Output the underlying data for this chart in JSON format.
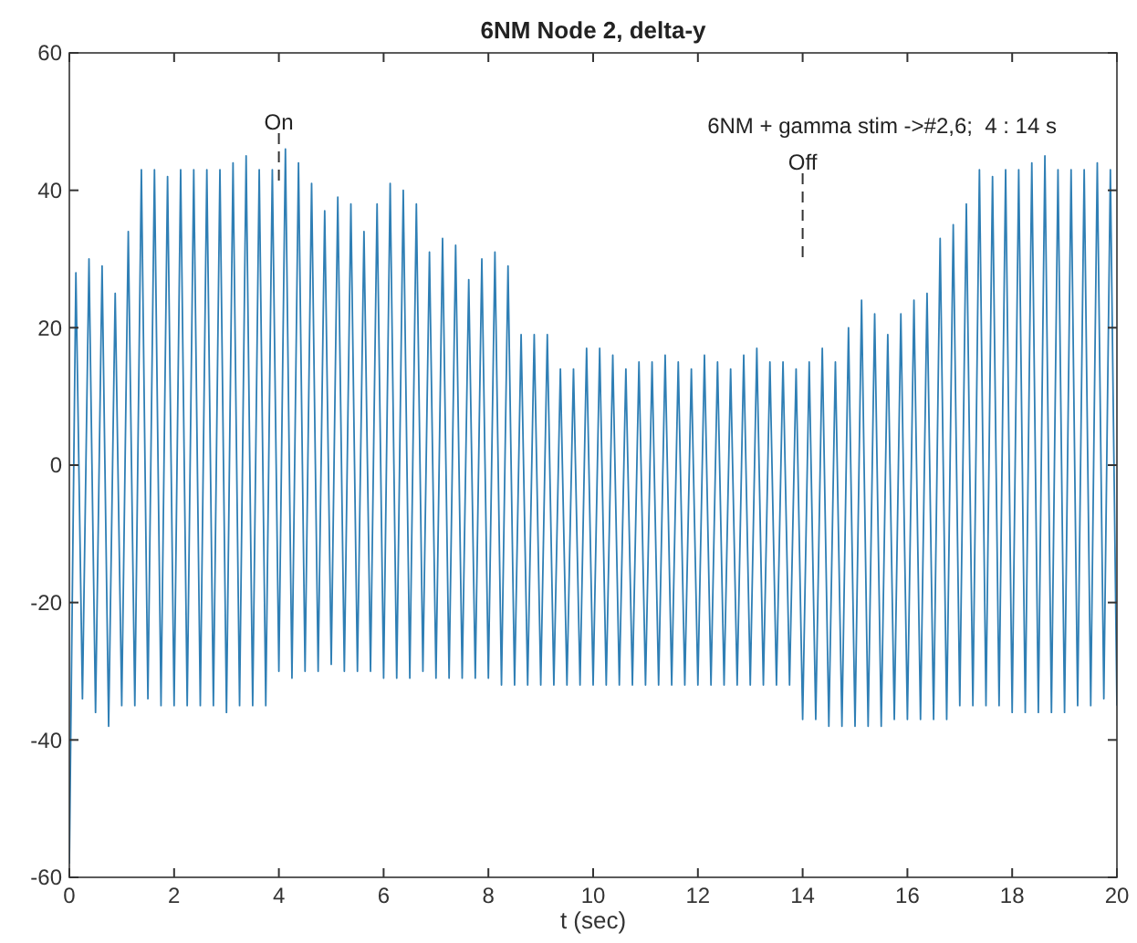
{
  "chart_data": {
    "type": "line",
    "title": "6NM Node 2, delta-y",
    "xlabel": "t (sec)",
    "annotations": [
      "6NM + gamma stim ->#2,6;  4 : 14 s"
    ],
    "ref_lines": [
      {
        "axis": "x",
        "value": 4,
        "label": "On",
        "line_style": "dashed",
        "color": "#333333"
      },
      {
        "axis": "x",
        "value": 14,
        "label": "Off",
        "line_style": "dashed",
        "color": "#333333"
      }
    ],
    "xlim": [
      0,
      20
    ],
    "xticks": [
      0,
      2,
      4,
      6,
      8,
      10,
      12,
      14,
      16,
      18,
      20
    ],
    "ylim": [
      -60,
      60
    ],
    "yticks": [
      -60,
      -40,
      -20,
      0,
      20,
      40,
      60
    ],
    "grid": false,
    "marker": "none",
    "line_style": "solid",
    "series": [
      {
        "color": "#2f7fb5",
        "x": [
          0,
          0.125,
          0.25,
          0.375,
          0.5,
          0.625,
          0.75,
          0.875,
          1,
          1.125,
          1.25,
          1.375,
          1.5,
          1.625,
          1.75,
          1.875,
          2,
          2.125,
          2.25,
          2.375,
          2.5,
          2.625,
          2.75,
          2.875,
          3,
          3.125,
          3.25,
          3.375,
          3.5,
          3.625,
          3.75,
          3.875,
          4,
          4.125,
          4.25,
          4.375,
          4.5,
          4.625,
          4.75,
          4.875,
          5,
          5.125,
          5.25,
          5.375,
          5.5,
          5.625,
          5.75,
          5.875,
          6,
          6.125,
          6.25,
          6.375,
          6.5,
          6.625,
          6.75,
          6.875,
          7,
          7.125,
          7.25,
          7.375,
          7.5,
          7.625,
          7.75,
          7.875,
          8,
          8.125,
          8.25,
          8.375,
          8.5,
          8.625,
          8.75,
          8.875,
          9,
          9.125,
          9.25,
          9.375,
          9.5,
          9.625,
          9.75,
          9.875,
          10,
          10.125,
          10.25,
          10.375,
          10.5,
          10.625,
          10.75,
          10.875,
          11,
          11.125,
          11.25,
          11.375,
          11.5,
          11.625,
          11.75,
          11.875,
          12,
          12.125,
          12.25,
          12.375,
          12.5,
          12.625,
          12.75,
          12.875,
          13,
          13.125,
          13.25,
          13.375,
          13.5,
          13.625,
          13.75,
          13.875,
          14,
          14.125,
          14.25,
          14.375,
          14.5,
          14.625,
          14.75,
          14.875,
          15,
          15.125,
          15.25,
          15.375,
          15.5,
          15.625,
          15.75,
          15.875,
          16,
          16.125,
          16.25,
          16.375,
          16.5,
          16.625,
          16.75,
          16.875,
          17,
          17.125,
          17.25,
          17.375,
          17.5,
          17.625,
          17.75,
          17.875,
          18,
          18.125,
          18.25,
          18.375,
          18.5,
          18.625,
          18.75,
          18.875,
          19,
          19.125,
          19.25,
          19.375,
          19.5,
          19.625,
          19.75,
          19.875,
          20
        ],
        "values": [
          -58,
          28,
          -34,
          30,
          -36,
          29,
          -38,
          25,
          -35,
          34,
          -35,
          43,
          -34,
          43,
          -35,
          42,
          -35,
          43,
          -35,
          43,
          -35,
          43,
          -35,
          43,
          -36,
          44,
          -35,
          45,
          -35,
          43,
          -35,
          43,
          -30,
          46,
          -31,
          44,
          -30,
          41,
          -30,
          37,
          -29,
          39,
          -30,
          38,
          -30,
          34,
          -30,
          38,
          -31,
          41,
          -31,
          40,
          -31,
          38,
          -30,
          31,
          -31,
          33,
          -31,
          32,
          -31,
          27,
          -31,
          30,
          -31,
          31,
          -32,
          29,
          -32,
          19,
          -32,
          19,
          -32,
          19,
          -32,
          14,
          -32,
          14,
          -32,
          17,
          -32,
          17,
          -32,
          16,
          -32,
          14,
          -32,
          15,
          -32,
          15,
          -32,
          16,
          -32,
          15,
          -32,
          14,
          -32,
          16,
          -32,
          15,
          -32,
          14,
          -32,
          16,
          -32,
          17,
          -32,
          15,
          -32,
          15,
          -32,
          14,
          -37,
          15,
          -37,
          17,
          -38,
          15,
          -38,
          20,
          -38,
          24,
          -38,
          22,
          -38,
          19,
          -37,
          22,
          -37,
          24,
          -37,
          25,
          -37,
          33,
          -37,
          35,
          -35,
          38,
          -35,
          43,
          -35,
          42,
          -35,
          43,
          -36,
          43,
          -36,
          44,
          -36,
          45,
          -36,
          43,
          -36,
          43,
          -35,
          43,
          -35,
          44,
          -34,
          43,
          -35
        ]
      }
    ]
  }
}
